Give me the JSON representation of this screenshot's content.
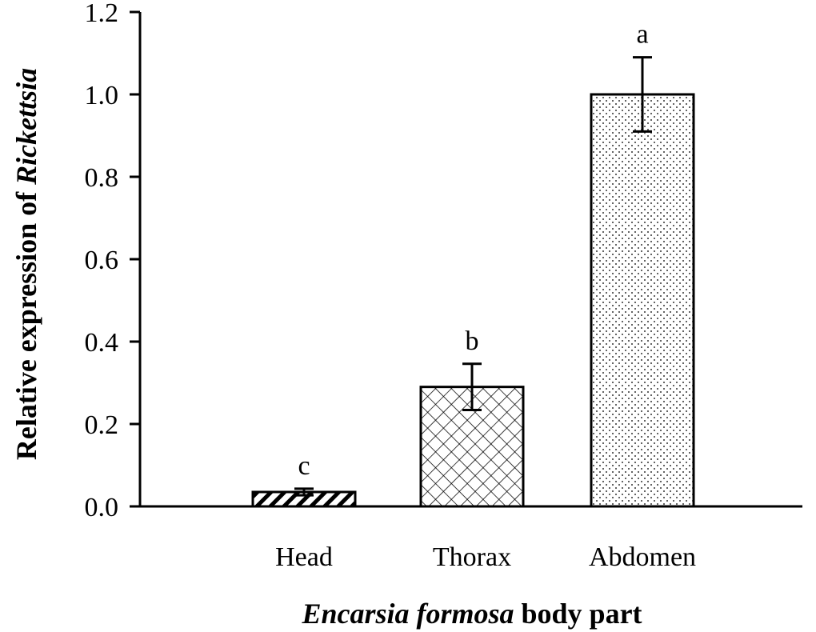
{
  "chart_data": {
    "type": "bar",
    "categories": [
      "Head",
      "Thorax",
      "Abdomen"
    ],
    "values": [
      0.035,
      0.29,
      1.0
    ],
    "errors": [
      0.008,
      0.056,
      0.09
    ],
    "significance_letters": [
      "c",
      "b",
      "a"
    ],
    "patterns": [
      "diagonal-hatch",
      "crosshatch",
      "dots"
    ],
    "ylim": [
      0,
      1.2
    ],
    "yticks": [
      "0.0",
      "0.2",
      "0.4",
      "0.6",
      "0.8",
      "1.0",
      "1.2"
    ],
    "ylabel": {
      "prefix": "Relative expression of ",
      "italic": "Rickettsia"
    },
    "xlabel": {
      "italic": "Encarsia formosa",
      "suffix": " body part"
    },
    "grid": false,
    "legend": "none",
    "colors": {
      "bar_fill": "#ffffff",
      "stroke": "#000000"
    }
  }
}
